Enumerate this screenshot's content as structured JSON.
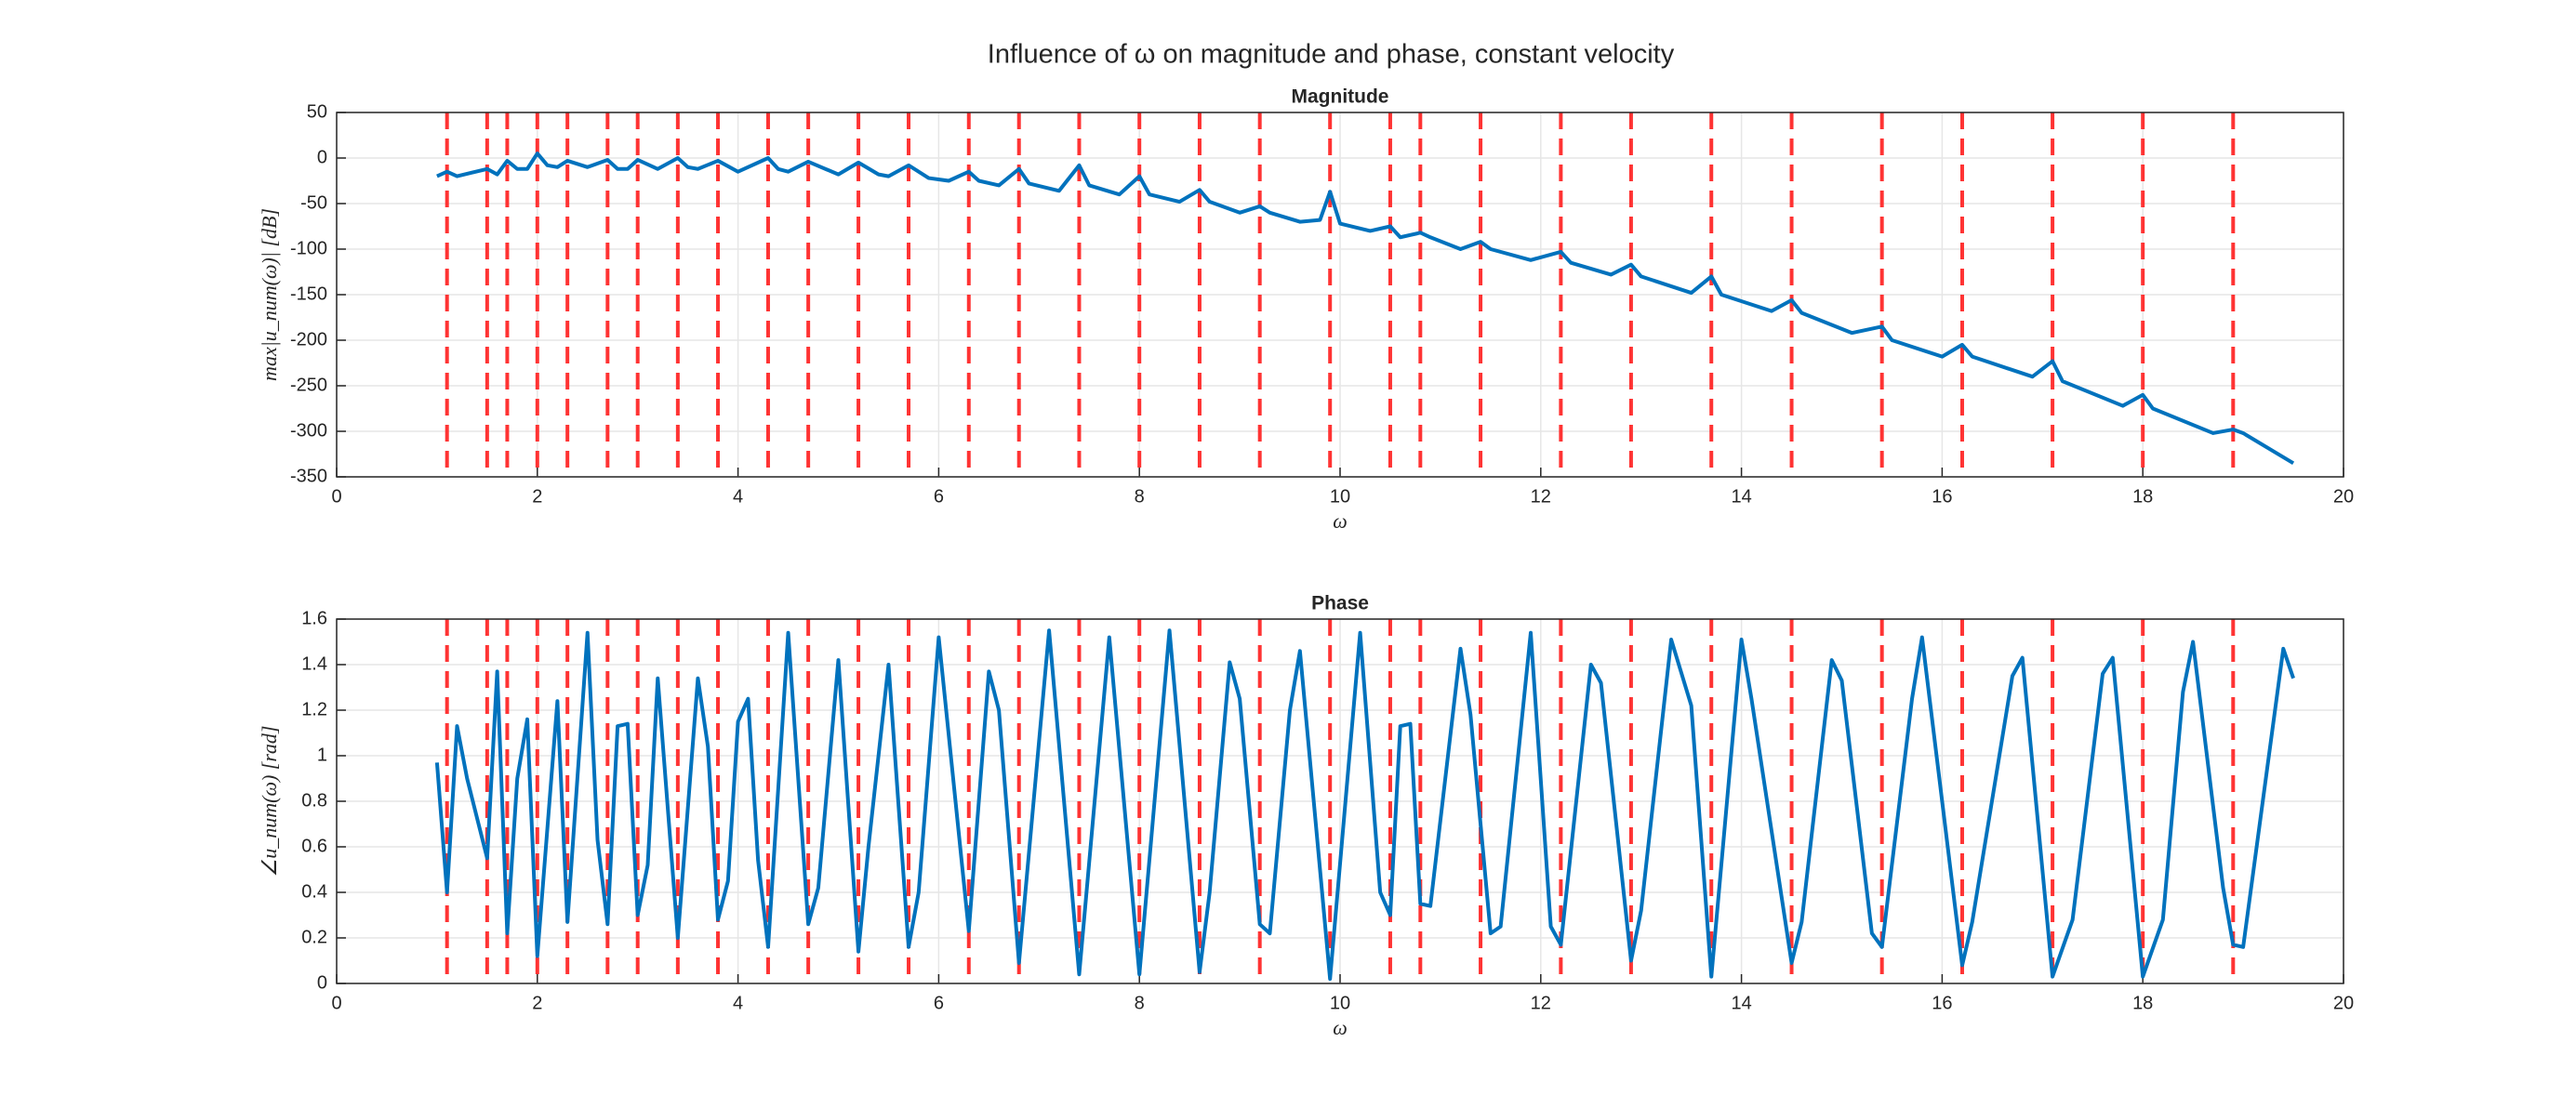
{
  "title": "Influence of ω on magnitude and phase, constant velocity",
  "chart_data": [
    {
      "type": "line",
      "title": "Magnitude",
      "xlabel": "ω",
      "ylabel": "max|u_num(ω)| [dB]",
      "xlim": [
        0,
        20
      ],
      "xticks": [
        0,
        2,
        4,
        6,
        8,
        10,
        12,
        14,
        16,
        18,
        20
      ],
      "ylim": [
        -350,
        50
      ],
      "yticks": [
        -350,
        -300,
        -250,
        -200,
        -150,
        -100,
        -50,
        0,
        50
      ],
      "grid": true,
      "vlines": [
        1.1,
        1.5,
        1.7,
        2.0,
        2.3,
        2.7,
        3.0,
        3.4,
        3.8,
        4.3,
        4.7,
        5.2,
        5.7,
        6.3,
        6.8,
        7.4,
        8.0,
        8.6,
        9.2,
        9.9,
        10.5,
        10.8,
        11.4,
        12.2,
        12.9,
        13.7,
        14.5,
        15.4,
        16.2,
        17.1,
        18.0,
        18.9
      ],
      "vline_color": "#ff3333",
      "x": [
        1.0,
        1.1,
        1.2,
        1.5,
        1.6,
        1.7,
        1.8,
        1.9,
        2.0,
        2.1,
        2.2,
        2.3,
        2.5,
        2.7,
        2.8,
        2.9,
        3.0,
        3.2,
        3.4,
        3.5,
        3.6,
        3.8,
        4.0,
        4.3,
        4.4,
        4.5,
        4.7,
        5.0,
        5.2,
        5.4,
        5.5,
        5.7,
        5.9,
        6.1,
        6.3,
        6.4,
        6.6,
        6.8,
        6.9,
        7.2,
        7.4,
        7.5,
        7.8,
        8.0,
        8.1,
        8.4,
        8.6,
        8.7,
        9.0,
        9.2,
        9.3,
        9.6,
        9.8,
        9.9,
        10.0,
        10.3,
        10.5,
        10.6,
        10.8,
        10.9,
        11.2,
        11.4,
        11.5,
        11.9,
        12.2,
        12.3,
        12.7,
        12.9,
        13.0,
        13.5,
        13.7,
        13.8,
        14.3,
        14.5,
        14.6,
        15.1,
        15.4,
        15.5,
        16.0,
        16.2,
        16.3,
        16.9,
        17.1,
        17.2,
        17.8,
        18.0,
        18.1,
        18.7,
        18.9,
        19.0,
        19.5
      ],
      "series": [
        {
          "name": "magnitude",
          "color": "#0072bd",
          "values": [
            -20,
            -15,
            -20,
            -12,
            -18,
            -3,
            -12,
            -12,
            5,
            -8,
            -10,
            -3,
            -10,
            -2,
            -12,
            -12,
            -2,
            -12,
            0,
            -10,
            -12,
            -3,
            -15,
            0,
            -12,
            -15,
            -4,
            -18,
            -5,
            -18,
            -20,
            -8,
            -22,
            -25,
            -15,
            -25,
            -30,
            -12,
            -28,
            -36,
            -8,
            -30,
            -40,
            -20,
            -40,
            -48,
            -35,
            -48,
            -60,
            -53,
            -60,
            -70,
            -68,
            -37,
            -72,
            -80,
            -75,
            -87,
            -82,
            -87,
            -100,
            -92,
            -100,
            -112,
            -103,
            -115,
            -128,
            -117,
            -130,
            -148,
            -130,
            -150,
            -168,
            -156,
            -170,
            -192,
            -185,
            -200,
            -218,
            -205,
            -218,
            -240,
            -223,
            -245,
            -272,
            -260,
            -275,
            -302,
            -298,
            -302,
            -335
          ]
        }
      ]
    },
    {
      "type": "line",
      "title": "Phase",
      "xlabel": "ω",
      "ylabel": "∠u_num(ω) [rad]",
      "xlim": [
        0,
        20
      ],
      "xticks": [
        0,
        2,
        4,
        6,
        8,
        10,
        12,
        14,
        16,
        18,
        20
      ],
      "ylim": [
        0,
        1.6
      ],
      "yticks": [
        0,
        0.2,
        0.4,
        0.6,
        0.8,
        1,
        1.2,
        1.4,
        1.6
      ],
      "grid": true,
      "vlines": [
        1.1,
        1.5,
        1.7,
        2.0,
        2.3,
        2.7,
        3.0,
        3.4,
        3.8,
        4.3,
        4.7,
        5.2,
        5.7,
        6.3,
        6.8,
        7.4,
        8.0,
        8.6,
        9.2,
        9.9,
        10.5,
        10.8,
        11.4,
        12.2,
        12.9,
        13.7,
        14.5,
        15.4,
        16.2,
        17.1,
        18.0,
        18.9
      ],
      "vline_color": "#ff3333",
      "x": [
        1.0,
        1.1,
        1.2,
        1.3,
        1.5,
        1.6,
        1.7,
        1.8,
        1.9,
        2.0,
        2.2,
        2.3,
        2.5,
        2.6,
        2.7,
        2.8,
        2.9,
        3.0,
        3.1,
        3.2,
        3.4,
        3.6,
        3.7,
        3.8,
        3.9,
        4.0,
        4.1,
        4.2,
        4.3,
        4.5,
        4.7,
        4.8,
        5.0,
        5.2,
        5.3,
        5.5,
        5.7,
        5.8,
        6.0,
        6.3,
        6.5,
        6.6,
        6.8,
        7.1,
        7.4,
        7.7,
        8.0,
        8.3,
        8.6,
        8.7,
        8.9,
        9.0,
        9.2,
        9.3,
        9.5,
        9.6,
        9.9,
        10.2,
        10.4,
        10.5,
        10.6,
        10.7,
        10.8,
        10.9,
        11.2,
        11.3,
        11.5,
        11.6,
        11.9,
        12.1,
        12.2,
        12.5,
        12.6,
        12.9,
        13.0,
        13.3,
        13.5,
        13.7,
        14.0,
        14.1,
        14.5,
        14.6,
        14.9,
        15.0,
        15.3,
        15.4,
        15.7,
        15.8,
        16.2,
        16.3,
        16.7,
        16.8,
        17.1,
        17.3,
        17.6,
        17.7,
        18.0,
        18.2,
        18.4,
        18.5,
        18.8,
        18.9,
        19.0,
        19.4,
        19.5
      ],
      "series": [
        {
          "name": "phase",
          "color": "#0072bd",
          "values": [
            0.97,
            0.4,
            1.13,
            0.9,
            0.55,
            1.37,
            0.22,
            0.9,
            1.16,
            0.12,
            1.24,
            0.27,
            1.54,
            0.63,
            0.26,
            1.13,
            1.14,
            0.3,
            0.52,
            1.34,
            0.2,
            1.34,
            1.04,
            0.28,
            0.45,
            1.15,
            1.25,
            0.54,
            0.16,
            1.54,
            0.26,
            0.42,
            1.42,
            0.14,
            0.6,
            1.4,
            0.16,
            0.4,
            1.52,
            0.23,
            1.37,
            1.2,
            0.09,
            1.55,
            0.04,
            1.52,
            0.04,
            1.55,
            0.05,
            0.4,
            1.41,
            1.25,
            0.26,
            0.22,
            1.2,
            1.46,
            0.02,
            1.54,
            0.4,
            0.3,
            1.13,
            1.14,
            0.35,
            0.34,
            1.47,
            1.18,
            0.22,
            0.25,
            1.54,
            0.25,
            0.17,
            1.4,
            1.32,
            0.1,
            0.32,
            1.51,
            1.22,
            0.03,
            1.51,
            1.25,
            0.09,
            0.27,
            1.42,
            1.33,
            0.22,
            0.16,
            1.25,
            1.52,
            0.08,
            0.27,
            1.35,
            1.43,
            0.03,
            0.28,
            1.36,
            1.43,
            0.03,
            0.28,
            1.28,
            1.5,
            0.42,
            0.17,
            0.16,
            1.47,
            1.34
          ]
        }
      ]
    }
  ]
}
